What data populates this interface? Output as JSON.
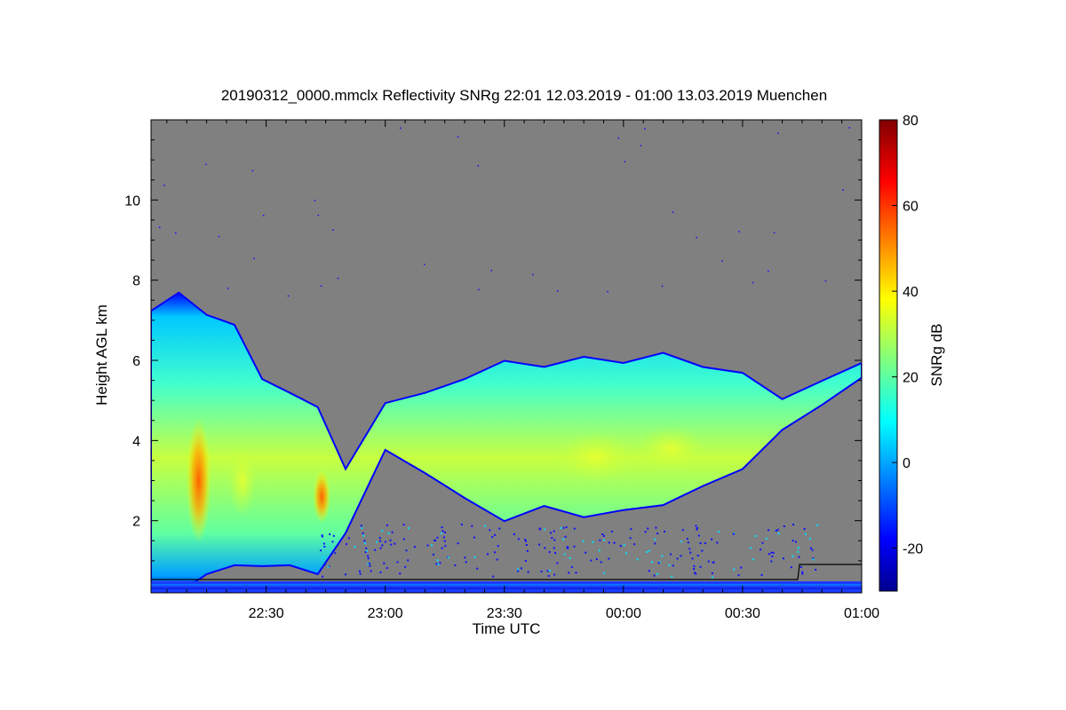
{
  "chart_data": {
    "type": "heatmap",
    "title": "20190312_0000.mmclx Reflectivity SNRg   22:01 12.03.2019 - 01:00 13.03.2019 Muenchen",
    "xlabel": "Time UTC",
    "ylabel": "Height AGL km",
    "colorbar_label": "SNRg dB",
    "x_range": [
      "22:01",
      "01:00"
    ],
    "x_ticks": [
      "22:30",
      "23:00",
      "23:30",
      "00:00",
      "00:30",
      "01:00"
    ],
    "ylim": [
      0.2,
      12.0
    ],
    "y_ticks": [
      2,
      4,
      6,
      8,
      10
    ],
    "colorbar_range": [
      -30,
      80
    ],
    "colorbar_ticks": [
      -20,
      0,
      20,
      40,
      60,
      80
    ],
    "colormap": "jet",
    "background_color": "#808080",
    "cloud_layer": {
      "time_km": [
        {
          "t": "22:01",
          "top": 7.3,
          "base": 0.3
        },
        {
          "t": "22:08",
          "top": 7.6,
          "base": 0.3
        },
        {
          "t": "22:15",
          "top": 7.2,
          "base": 0.6
        },
        {
          "t": "22:22",
          "top": 6.8,
          "base": 1.0
        },
        {
          "t": "22:29",
          "top": 5.6,
          "base": 0.8
        },
        {
          "t": "22:36",
          "top": 5.1,
          "base": 1.0
        },
        {
          "t": "22:43",
          "top": 4.9,
          "base": 0.6
        },
        {
          "t": "22:50",
          "top": 3.2,
          "base": 1.8
        },
        {
          "t": "23:00",
          "top": 5.0,
          "base": 3.7
        },
        {
          "t": "23:10",
          "top": 5.1,
          "base": 3.3
        },
        {
          "t": "23:20",
          "top": 5.6,
          "base": 2.5
        },
        {
          "t": "23:30",
          "top": 5.9,
          "base": 2.1
        },
        {
          "t": "23:40",
          "top": 5.9,
          "base": 2.3
        },
        {
          "t": "23:50",
          "top": 6.0,
          "base": 2.2
        },
        {
          "t": "00:00",
          "top": 6.0,
          "base": 2.2
        },
        {
          "t": "00:10",
          "top": 6.1,
          "base": 2.5
        },
        {
          "t": "00:20",
          "top": 5.9,
          "base": 2.8
        },
        {
          "t": "00:30",
          "top": 5.6,
          "base": 3.4
        },
        {
          "t": "00:40",
          "top": 5.1,
          "base": 4.2
        },
        {
          "t": "00:50",
          "top": 5.4,
          "base": 5.0
        },
        {
          "t": "01:00",
          "top": 6.0,
          "base": 5.5
        }
      ]
    }
  }
}
